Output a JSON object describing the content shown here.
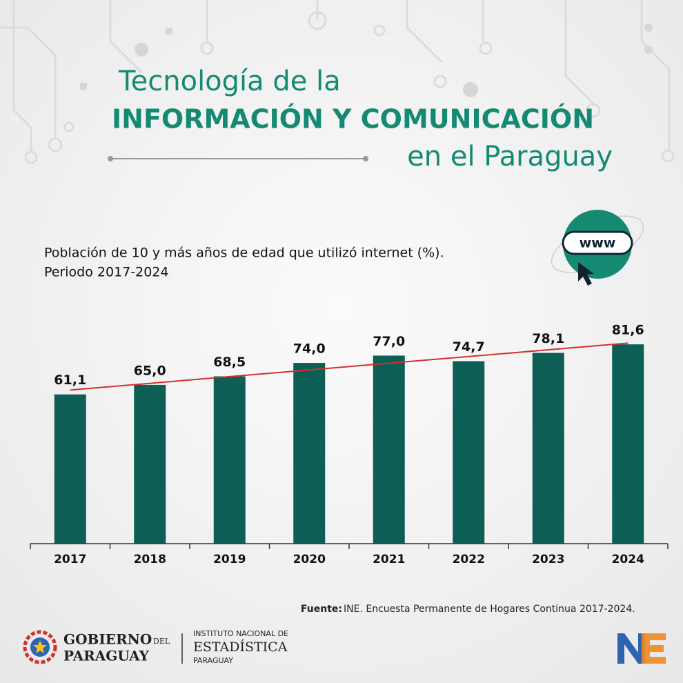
{
  "chart_data": {
    "type": "bar",
    "title": [
      "Tecnología de la",
      "INFORMACIÓN Y COMUNICACIÓN",
      "en el Paraguay"
    ],
    "subtitle": [
      "Población de 10 y más años de edad que utilizó internet (%).",
      "Periodo 2017-2024"
    ],
    "categories": [
      "2017",
      "2018",
      "2019",
      "2020",
      "2021",
      "2022",
      "2023",
      "2024"
    ],
    "values": [
      61.1,
      65.0,
      68.5,
      74.0,
      77.0,
      74.7,
      78.1,
      81.6
    ],
    "value_labels": [
      "61,1",
      "65,0",
      "68,5",
      "74,0",
      "77,0",
      "74,7",
      "78,1",
      "81,6"
    ],
    "color": "#0d5e55",
    "ylim": [
      0,
      100
    ],
    "trendline": true,
    "trendline_color": "#d3302f",
    "icon_text": "www",
    "source_label": "Fuente:",
    "source": "INE. Encuesta Permanente de Hogares Continua 2017-2024."
  },
  "logos": {
    "gov_line1": "GOBIERNO",
    "gov_small": "DEL",
    "gov_line2": "PARAGUAY",
    "ine_line1": "INSTITUTO NACIONAL DE",
    "ine_line2": "ESTADÍSTICA",
    "ine_line3": "PARAGUAY"
  }
}
